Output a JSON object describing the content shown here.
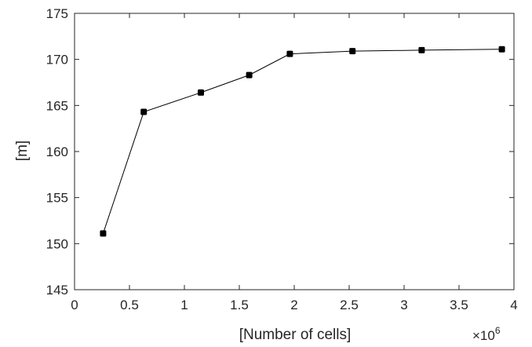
{
  "chart_data": {
    "type": "line",
    "title": "",
    "xlabel": "[Number of cells]",
    "ylabel": "[m]",
    "x_exponent_label": {
      "base": "×10",
      "power": "6"
    },
    "xlim": [
      0,
      4
    ],
    "ylim": [
      145,
      175
    ],
    "x_ticks": [
      0,
      0.5,
      1,
      1.5,
      2,
      2.5,
      3,
      3.5,
      4
    ],
    "x_tick_labels": [
      "0",
      "0.5",
      "1",
      "1.5",
      "2",
      "2.5",
      "3",
      "3.5",
      "4"
    ],
    "y_ticks": [
      145,
      150,
      155,
      160,
      165,
      170,
      175
    ],
    "y_tick_labels": [
      "145",
      "150",
      "155",
      "160",
      "165",
      "170",
      "175"
    ],
    "grid": false,
    "series": [
      {
        "x": [
          0.26,
          0.63,
          1.15,
          1.59,
          1.96,
          2.53,
          3.16,
          3.89
        ],
        "y": [
          151.1,
          164.3,
          166.4,
          168.3,
          170.6,
          170.9,
          171.0,
          171.1
        ],
        "color": "#000000",
        "marker": "square"
      }
    ]
  }
}
